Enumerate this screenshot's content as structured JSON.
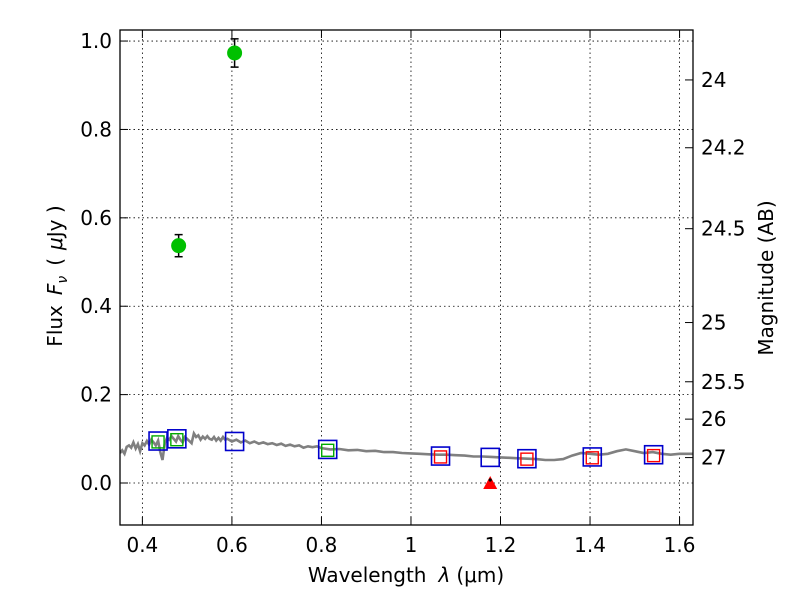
{
  "chart_data": {
    "type": "scatter",
    "xlabel_text": "Wavelength",
    "xlabel_symbol": "λ",
    "xlabel_unit": "(μm)",
    "ylabel_text": "Flux",
    "ylabel_symbol": "F",
    "ylabel_subscript": "ν",
    "ylabel_unit_open": "(",
    "ylabel_unit_mu": "μ",
    "ylabel_unit_rest": "Jy )",
    "y2label": "Magnitude (AB)",
    "xlim": [
      0.35,
      1.63
    ],
    "ylim": [
      -0.095,
      1.025
    ],
    "grid": true,
    "x_ticks": [
      {
        "value": 0.4,
        "label": "0.4"
      },
      {
        "value": 0.6,
        "label": "0.6"
      },
      {
        "value": 0.8,
        "label": "0.8"
      },
      {
        "value": 1.0,
        "label": "1"
      },
      {
        "value": 1.2,
        "label": "1.2"
      },
      {
        "value": 1.4,
        "label": "1.4"
      },
      {
        "value": 1.6,
        "label": "1.6"
      }
    ],
    "y_ticks": [
      {
        "value": 0.0,
        "label": "0.0"
      },
      {
        "value": 0.2,
        "label": "0.2"
      },
      {
        "value": 0.4,
        "label": "0.4"
      },
      {
        "value": 0.6,
        "label": "0.6"
      },
      {
        "value": 0.8,
        "label": "0.8"
      },
      {
        "value": 1.0,
        "label": "1.0"
      }
    ],
    "y2_ticks": [
      {
        "value": 24.0,
        "label": "24"
      },
      {
        "value": 24.2,
        "label": "24.2"
      },
      {
        "value": 24.5,
        "label": "24.5"
      },
      {
        "value": 25.0,
        "label": "25"
      },
      {
        "value": 25.5,
        "label": "25.5"
      },
      {
        "value": 26.0,
        "label": "26"
      },
      {
        "value": 27.0,
        "label": "27"
      }
    ],
    "model_sed": {
      "color": "#808080",
      "points": [
        [
          0.35,
          0.068
        ],
        [
          0.355,
          0.074
        ],
        [
          0.36,
          0.066
        ],
        [
          0.365,
          0.082
        ],
        [
          0.37,
          0.085
        ],
        [
          0.375,
          0.08
        ],
        [
          0.38,
          0.092
        ],
        [
          0.385,
          0.078
        ],
        [
          0.39,
          0.088
        ],
        [
          0.395,
          0.072
        ],
        [
          0.4,
          0.09
        ],
        [
          0.405,
          0.085
        ],
        [
          0.41,
          0.095
        ],
        [
          0.415,
          0.087
        ],
        [
          0.42,
          0.098
        ],
        [
          0.425,
          0.092
        ],
        [
          0.43,
          0.085
        ],
        [
          0.435,
          0.096
        ],
        [
          0.44,
          0.07
        ],
        [
          0.445,
          0.052
        ],
        [
          0.45,
          0.09
        ],
        [
          0.455,
          0.102
        ],
        [
          0.46,
          0.098
        ],
        [
          0.465,
          0.106
        ],
        [
          0.47,
          0.1
        ],
        [
          0.475,
          0.094
        ],
        [
          0.48,
          0.106
        ],
        [
          0.485,
          0.098
        ],
        [
          0.49,
          0.092
        ],
        [
          0.495,
          0.104
        ],
        [
          0.5,
          0.1
        ],
        [
          0.505,
          0.095
        ],
        [
          0.51,
          0.09
        ],
        [
          0.515,
          0.112
        ],
        [
          0.52,
          0.104
        ],
        [
          0.525,
          0.108
        ],
        [
          0.53,
          0.098
        ],
        [
          0.535,
          0.105
        ],
        [
          0.54,
          0.1
        ],
        [
          0.545,
          0.106
        ],
        [
          0.55,
          0.1
        ],
        [
          0.555,
          0.098
        ],
        [
          0.56,
          0.104
        ],
        [
          0.565,
          0.096
        ],
        [
          0.57,
          0.102
        ],
        [
          0.575,
          0.096
        ],
        [
          0.58,
          0.104
        ],
        [
          0.585,
          0.098
        ],
        [
          0.59,
          0.1
        ],
        [
          0.6,
          0.094
        ],
        [
          0.61,
          0.098
        ],
        [
          0.62,
          0.092
        ],
        [
          0.63,
          0.096
        ],
        [
          0.64,
          0.09
        ],
        [
          0.65,
          0.094
        ],
        [
          0.66,
          0.089
        ],
        [
          0.67,
          0.092
        ],
        [
          0.68,
          0.088
        ],
        [
          0.69,
          0.09
        ],
        [
          0.7,
          0.086
        ],
        [
          0.71,
          0.089
        ],
        [
          0.72,
          0.084
        ],
        [
          0.73,
          0.087
        ],
        [
          0.74,
          0.083
        ],
        [
          0.75,
          0.085
        ],
        [
          0.76,
          0.08
        ],
        [
          0.77,
          0.083
        ],
        [
          0.78,
          0.081
        ],
        [
          0.79,
          0.083
        ],
        [
          0.8,
          0.079
        ],
        [
          0.82,
          0.076
        ],
        [
          0.84,
          0.077
        ],
        [
          0.86,
          0.074
        ],
        [
          0.88,
          0.075
        ],
        [
          0.9,
          0.072
        ],
        [
          0.92,
          0.073
        ],
        [
          0.94,
          0.07
        ],
        [
          0.96,
          0.07
        ],
        [
          0.98,
          0.068
        ],
        [
          1.0,
          0.067
        ],
        [
          1.02,
          0.066
        ],
        [
          1.04,
          0.065
        ],
        [
          1.06,
          0.064
        ],
        [
          1.08,
          0.064
        ],
        [
          1.1,
          0.063
        ],
        [
          1.12,
          0.062
        ],
        [
          1.14,
          0.06
        ],
        [
          1.16,
          0.06
        ],
        [
          1.18,
          0.059
        ],
        [
          1.2,
          0.058
        ],
        [
          1.22,
          0.057
        ],
        [
          1.24,
          0.056
        ],
        [
          1.26,
          0.055
        ],
        [
          1.28,
          0.054
        ],
        [
          1.3,
          0.052
        ],
        [
          1.32,
          0.052
        ],
        [
          1.34,
          0.054
        ],
        [
          1.36,
          0.062
        ],
        [
          1.38,
          0.068
        ],
        [
          1.4,
          0.066
        ],
        [
          1.42,
          0.064
        ],
        [
          1.44,
          0.066
        ],
        [
          1.46,
          0.072
        ],
        [
          1.48,
          0.076
        ],
        [
          1.5,
          0.072
        ],
        [
          1.52,
          0.068
        ],
        [
          1.54,
          0.07
        ],
        [
          1.56,
          0.066
        ],
        [
          1.58,
          0.064
        ],
        [
          1.6,
          0.066
        ],
        [
          1.63,
          0.066
        ]
      ]
    },
    "observed_detections": {
      "color": "#00c000",
      "points": [
        {
          "x": 0.481,
          "y": 0.537,
          "yerr": 0.025
        },
        {
          "x": 0.606,
          "y": 0.973,
          "yerr": 0.032
        }
      ]
    },
    "observed_upper_limit": {
      "color": "#ff0000",
      "points": [
        {
          "x": 1.177,
          "y": 0.0
        }
      ]
    },
    "model_photometry_blue": {
      "color": "#0000cc",
      "points": [
        {
          "x": 0.435,
          "y": 0.095
        },
        {
          "x": 0.477,
          "y": 0.1
        },
        {
          "x": 0.606,
          "y": 0.094
        },
        {
          "x": 0.814,
          "y": 0.076
        },
        {
          "x": 1.066,
          "y": 0.061
        },
        {
          "x": 1.177,
          "y": 0.058
        },
        {
          "x": 1.259,
          "y": 0.055
        },
        {
          "x": 1.405,
          "y": 0.059
        },
        {
          "x": 1.542,
          "y": 0.064
        }
      ]
    },
    "model_photometry_red": {
      "color": "#ff0000",
      "points": [
        {
          "x": 1.066,
          "y": 0.059
        },
        {
          "x": 1.259,
          "y": 0.054
        },
        {
          "x": 1.405,
          "y": 0.057
        },
        {
          "x": 1.542,
          "y": 0.062
        }
      ]
    },
    "model_photometry_green": {
      "color": "#00aa00",
      "points": [
        {
          "x": 0.435,
          "y": 0.093
        },
        {
          "x": 0.477,
          "y": 0.098
        },
        {
          "x": 0.814,
          "y": 0.074
        }
      ]
    }
  }
}
